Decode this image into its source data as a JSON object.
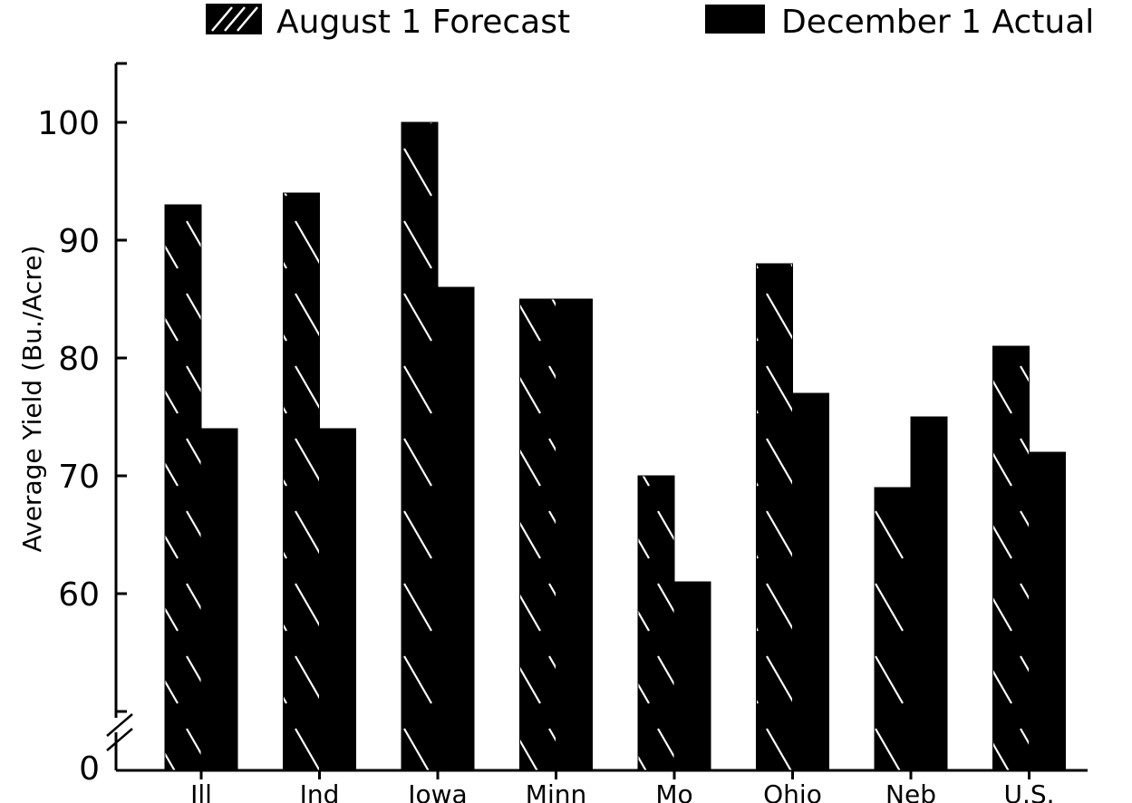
{
  "chart_data": {
    "type": "bar",
    "title": "",
    "xlabel": "",
    "ylabel": "Average Yield (Bu./Acre)",
    "ylim": [
      50,
      100
    ],
    "axis_break": true,
    "y_zero_label": "0",
    "yticks": [
      "60",
      "70",
      "80",
      "90",
      "100"
    ],
    "categories": [
      "Ill",
      "Ind",
      "Iowa",
      "Minn",
      "Mo",
      "Ohio",
      "Neb",
      "U.S."
    ],
    "series": [
      {
        "name": "August 1 Forecast",
        "values": [
          93,
          94,
          100,
          85,
          70,
          88,
          69,
          81
        ],
        "fill": "hatched"
      },
      {
        "name": "December 1 Actual",
        "values": [
          74,
          74,
          86,
          85,
          61,
          77,
          75,
          72
        ],
        "fill": "solid"
      }
    ],
    "legend_position": "top",
    "grid": false,
    "colors": {
      "bar": "#000000",
      "hatch": "#ffffff",
      "background": "#ffffff"
    }
  }
}
